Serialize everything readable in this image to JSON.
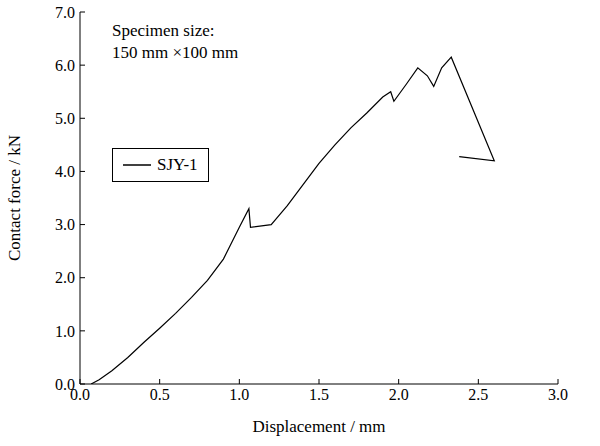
{
  "chart_data": {
    "type": "line",
    "x_label": "Displacement / mm",
    "y_label": "Contact force / kN",
    "annotations": [
      "Specimen size:",
      "150 mm ×100 mm"
    ],
    "legend": "upper left",
    "grid": false,
    "xlim": [
      0,
      3
    ],
    "ylim": [
      0,
      7
    ],
    "xticks": [
      {
        "value": 0,
        "label": "0.0"
      },
      {
        "value": 0.5,
        "label": "0.5"
      },
      {
        "value": 1,
        "label": "1.0"
      },
      {
        "value": 1.5,
        "label": "1.5"
      },
      {
        "value": 2,
        "label": "2.0"
      },
      {
        "value": 2.5,
        "label": "2.5"
      },
      {
        "value": 3,
        "label": "3.0"
      }
    ],
    "yticks": [
      {
        "value": 0,
        "label": "0.0"
      },
      {
        "value": 1,
        "label": "1.0"
      },
      {
        "value": 2,
        "label": "2.0"
      },
      {
        "value": 3,
        "label": "3.0"
      },
      {
        "value": 4,
        "label": "4.0"
      },
      {
        "value": 5,
        "label": "5.0"
      },
      {
        "value": 6,
        "label": "6.0"
      },
      {
        "value": 7,
        "label": "7.0"
      }
    ],
    "series": [
      {
        "name": "SJY-1",
        "color": "#000000",
        "line_style": "solid",
        "x": [
          0.07,
          0.12,
          0.2,
          0.3,
          0.4,
          0.5,
          0.6,
          0.7,
          0.8,
          0.9,
          1.0,
          1.06,
          1.07,
          1.2,
          1.3,
          1.4,
          1.5,
          1.6,
          1.7,
          1.8,
          1.9,
          1.95,
          1.97,
          2.05,
          2.12,
          2.18,
          2.22,
          2.27,
          2.33,
          2.6,
          2.38
        ],
        "values": [
          0,
          0.08,
          0.25,
          0.5,
          0.78,
          1.05,
          1.33,
          1.63,
          1.95,
          2.35,
          2.95,
          3.3,
          2.95,
          3.0,
          3.35,
          3.75,
          4.15,
          4.5,
          4.82,
          5.1,
          5.4,
          5.5,
          5.32,
          5.65,
          5.95,
          5.8,
          5.6,
          5.95,
          6.15,
          4.2,
          4.28
        ]
      }
    ]
  }
}
